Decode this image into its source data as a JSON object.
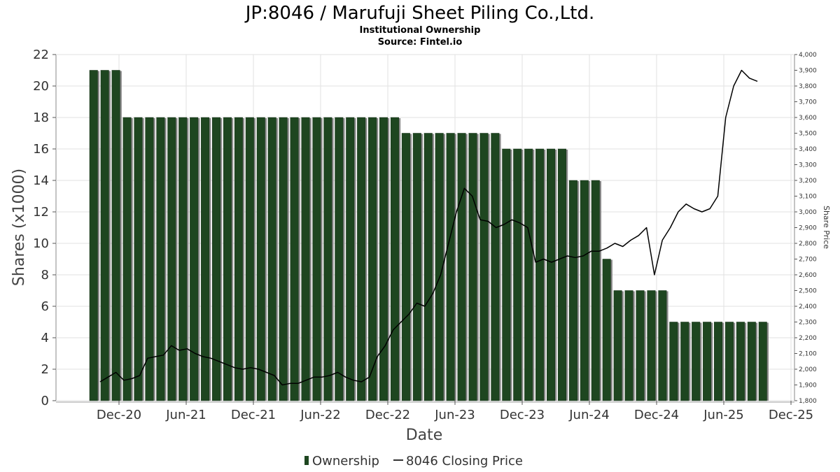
{
  "chart_data": {
    "type": "bar",
    "title": "JP:8046 / Marufuji Sheet Piling Co.,Ltd.",
    "subtitle": "Institutional Ownership",
    "source": "Source: Fintel.io",
    "xlabel": "Date",
    "ylabel": "Shares (x1000)",
    "y2label": "Share Price",
    "ylim": [
      0,
      22
    ],
    "y2lim": [
      1800,
      4000
    ],
    "yticks": [
      0,
      2,
      4,
      6,
      8,
      10,
      12,
      14,
      16,
      18,
      20,
      22
    ],
    "y2ticks": [
      "1,800",
      "1,900",
      "2,000",
      "2,100",
      "2,200",
      "2,300",
      "2,400",
      "2,500",
      "2,600",
      "2,700",
      "2,800",
      "2,900",
      "3,000",
      "3,100",
      "3,200",
      "3,300",
      "3,400",
      "3,500",
      "3,600",
      "3,700",
      "3,800",
      "3,900",
      "4,000"
    ],
    "xticks": [
      "Dec-20",
      "Jun-21",
      "Dec-21",
      "Jun-22",
      "Dec-22",
      "Jun-23",
      "Dec-23",
      "Jun-24",
      "Dec-24",
      "Jun-25",
      "Dec-25"
    ],
    "grid": true,
    "legend_position": "bottom",
    "series": [
      {
        "name": "Ownership",
        "kind": "bar",
        "color": "#1e4620",
        "values": [
          21,
          21,
          21,
          18,
          18,
          18,
          18,
          18,
          18,
          18,
          18,
          18,
          18,
          18,
          18,
          18,
          18,
          18,
          18,
          18,
          18,
          18,
          18,
          18,
          18,
          18,
          18,
          18,
          17,
          17,
          17,
          17,
          17,
          17,
          17,
          17,
          17,
          16,
          16,
          16,
          16,
          16,
          16,
          14,
          14,
          14,
          9,
          7,
          7,
          7,
          7,
          7,
          5,
          5,
          5,
          5,
          5,
          5,
          5,
          5,
          5
        ]
      },
      {
        "name": "8046 Closing Price",
        "kind": "line",
        "color": "#000000",
        "values": [
          1920,
          1950,
          1980,
          1930,
          1940,
          1960,
          2070,
          2080,
          2090,
          2150,
          2120,
          2130,
          2100,
          2080,
          2070,
          2050,
          2030,
          2010,
          2000,
          2010,
          2000,
          1980,
          1960,
          1900,
          1910,
          1910,
          1930,
          1950,
          1950,
          1960,
          1980,
          1950,
          1930,
          1920,
          1950,
          2080,
          2150,
          2250,
          2300,
          2350,
          2420,
          2400,
          2480,
          2600,
          2800,
          3000,
          3150,
          3100,
          2950,
          2940,
          2900,
          2920,
          2950,
          2930,
          2900,
          2680,
          2700,
          2680,
          2700,
          2720,
          2710,
          2720,
          2750,
          2750,
          2770,
          2800,
          2780,
          2820,
          2850,
          2900,
          2600,
          2820,
          2900,
          3000,
          3050,
          3020,
          3000,
          3020,
          3100,
          3600,
          3800,
          3900,
          3850,
          3830
        ]
      }
    ]
  },
  "legend": {
    "ownership_label": "Ownership",
    "price_label": "8046 Closing Price"
  }
}
